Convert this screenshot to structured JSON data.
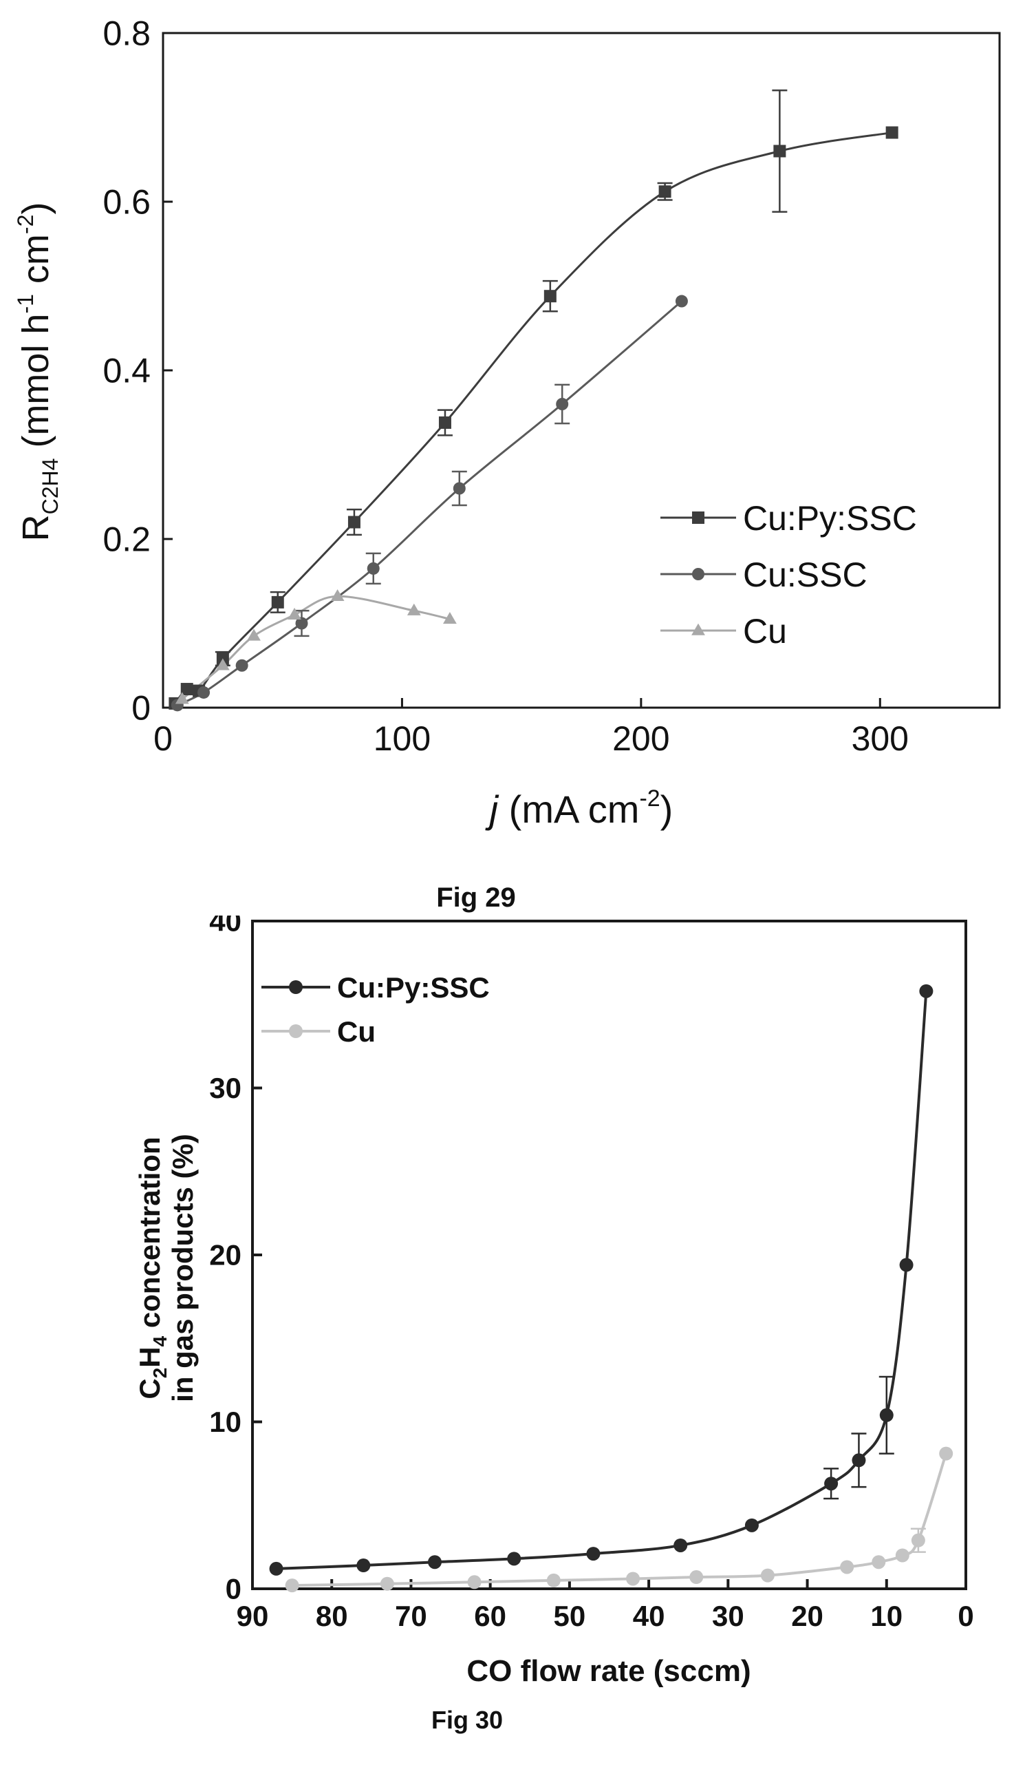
{
  "charts": [
    {
      "type": "line",
      "caption": "Fig 29",
      "xlabel_italic": "j",
      "xlabel_rest": " (mA cm",
      "xlabel_sup": "-2",
      "xlabel_end": ")",
      "ylabel_main": "R",
      "ylabel_sub": "C2H4",
      "ylabel_mid": " (mmol h",
      "ylabel_sup1": "-1",
      "ylabel_mid2": " cm",
      "ylabel_sup2": "-2",
      "ylabel_end": ")",
      "xlim": [
        0,
        350
      ],
      "ylim": [
        0,
        0.8
      ],
      "xticks": [
        "0",
        "100",
        "200",
        "300"
      ],
      "xtick_values": [
        0,
        100,
        200,
        300
      ],
      "yticks": [
        "0",
        "0.2",
        "0.4",
        "0.6",
        "0.8"
      ],
      "ytick_values": [
        0,
        0.2,
        0.4,
        0.6,
        0.8
      ],
      "legend_position": "bottom-right",
      "series": [
        {
          "name": "Cu:Py:SSC",
          "marker": "square",
          "color": "#3d3d3d",
          "x": [
            5,
            10,
            15,
            25,
            48,
            80,
            118,
            162,
            210,
            258,
            305
          ],
          "y": [
            0.005,
            0.022,
            0.02,
            0.058,
            0.125,
            0.22,
            0.338,
            0.488,
            0.612,
            0.66,
            0.682
          ],
          "err": [
            0,
            0,
            0,
            0.008,
            0.012,
            0.015,
            0.015,
            0.018,
            0.01,
            0.072,
            0
          ]
        },
        {
          "name": "Cu:SSC",
          "marker": "circle",
          "color": "#5a5a5a",
          "x": [
            6,
            17,
            33,
            58,
            88,
            124,
            167,
            217
          ],
          "y": [
            0.003,
            0.018,
            0.05,
            0.1,
            0.165,
            0.26,
            0.36,
            0.482
          ],
          "err": [
            0,
            0,
            0,
            0.015,
            0.018,
            0.02,
            0.023,
            0
          ]
        },
        {
          "name": "Cu",
          "marker": "triangle",
          "color": "#a8a8a8",
          "x": [
            8,
            25,
            38,
            55,
            73,
            105,
            120
          ],
          "y": [
            0.01,
            0.05,
            0.085,
            0.11,
            0.132,
            0.115,
            0.105
          ],
          "err": [
            0,
            0,
            0,
            0,
            0,
            0,
            0
          ]
        }
      ]
    },
    {
      "type": "line",
      "caption": "Fig 30",
      "xlabel": "CO flow rate (sccm)",
      "ylabel_line1_a": "C",
      "ylabel_line1_sub1": "2",
      "ylabel_line1_b": "H",
      "ylabel_line1_sub2": "4",
      "ylabel_line1_c": " concentration",
      "ylabel_line2": "in gas products (%)",
      "xlim": [
        90,
        0
      ],
      "ylim": [
        0,
        40
      ],
      "xticks": [
        "90",
        "80",
        "70",
        "60",
        "50",
        "40",
        "30",
        "20",
        "10",
        "0"
      ],
      "xtick_values": [
        90,
        80,
        70,
        60,
        50,
        40,
        30,
        20,
        10,
        0
      ],
      "yticks": [
        "0",
        "10",
        "20",
        "30",
        "40"
      ],
      "ytick_values": [
        0,
        10,
        20,
        30,
        40
      ],
      "legend_position": "top-left",
      "series": [
        {
          "name": "Cu:Py:SSC",
          "marker": "circle",
          "color": "#2a2a2a",
          "x": [
            87,
            76,
            67,
            57,
            47,
            36,
            27,
            17,
            13.5,
            10,
            7.5,
            5
          ],
          "y": [
            1.2,
            1.4,
            1.6,
            1.8,
            2.1,
            2.6,
            3.8,
            6.3,
            7.7,
            10.4,
            19.4,
            35.8
          ],
          "err": [
            0,
            0,
            0,
            0,
            0,
            0,
            0,
            0.9,
            1.6,
            2.3,
            0,
            0
          ]
        },
        {
          "name": "Cu",
          "marker": "circle",
          "color": "#c4c4c4",
          "x": [
            85,
            73,
            62,
            52,
            42,
            34,
            25,
            15,
            11,
            8,
            6,
            2.5
          ],
          "y": [
            0.2,
            0.3,
            0.4,
            0.5,
            0.6,
            0.7,
            0.8,
            1.3,
            1.6,
            2.0,
            2.9,
            8.1
          ],
          "err": [
            0,
            0,
            0,
            0,
            0,
            0,
            0,
            0,
            0,
            0,
            0.7,
            0
          ]
        }
      ]
    }
  ]
}
